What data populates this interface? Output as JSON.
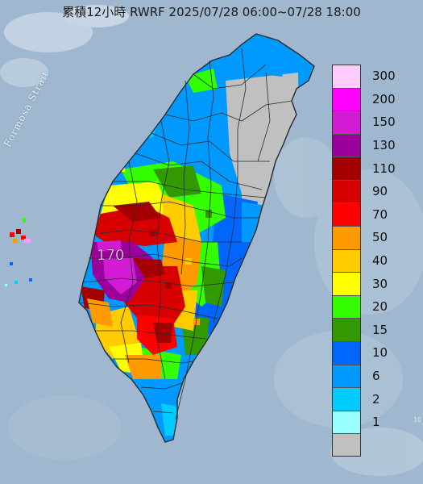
{
  "header": {
    "title": "累積12小時 RWRF 2025/07/28 06:00~07/28 18:00"
  },
  "map": {
    "strait_label": "Formosa Strait",
    "overlay_value_label": "170",
    "corner_mark": "10"
  },
  "legend": {
    "labels": [
      "300",
      "200",
      "150",
      "130",
      "110",
      "90",
      "70",
      "50",
      "40",
      "30",
      "20",
      "15",
      "10",
      "6",
      "2",
      "1"
    ],
    "colors": [
      "#ffccff",
      "#ff00ff",
      "#d21bd2",
      "#9b009b",
      "#a50000",
      "#d60000",
      "#ff0000",
      "#ff9900",
      "#ffcc00",
      "#ffff00",
      "#33ff00",
      "#339900",
      "#0066ff",
      "#0099ff",
      "#00ccff",
      "#99ffff",
      "#c0c0c0"
    ]
  },
  "colors": {
    "sea": "#9fb8cf",
    "border": "#2a2a2a"
  }
}
